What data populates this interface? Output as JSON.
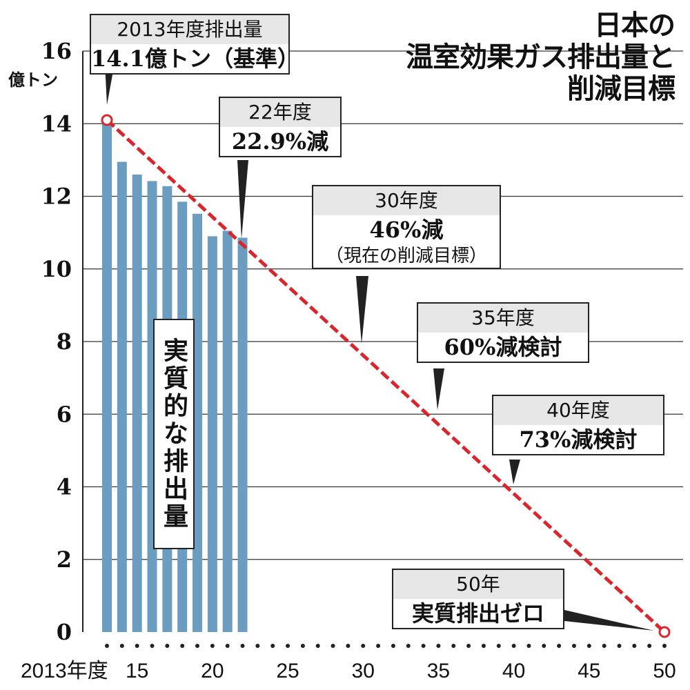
{
  "title_lines": [
    "日本の",
    "温室効果ガス排出量と",
    "削減目標"
  ],
  "y_unit": "億トン",
  "chart_data": {
    "type": "bar",
    "title": "日本の温室効果ガス排出量と削減目標",
    "ylabel": "億トン",
    "ylim": [
      0,
      16
    ],
    "yticks": [
      0,
      2,
      4,
      6,
      8,
      10,
      12,
      14,
      16
    ],
    "grid": true,
    "x_tick_labels": [
      {
        "year": 2013,
        "label": "2013年度"
      },
      {
        "year": 2015,
        "label": "15"
      },
      {
        "year": 2020,
        "label": "20"
      },
      {
        "year": 2025,
        "label": "25"
      },
      {
        "year": 2030,
        "label": "30"
      },
      {
        "year": 2035,
        "label": "35"
      },
      {
        "year": 2040,
        "label": "40"
      },
      {
        "year": 2045,
        "label": "45"
      },
      {
        "year": 2050,
        "label": "50"
      }
    ],
    "series": [
      {
        "name": "実質的な排出量",
        "type": "bar",
        "color": "#6a9dc0",
        "x": [
          2013,
          2014,
          2015,
          2016,
          2017,
          2018,
          2019,
          2020,
          2021,
          2022
        ],
        "values": [
          14.1,
          12.95,
          12.6,
          12.42,
          12.28,
          11.85,
          11.52,
          10.9,
          11.05,
          10.86
        ]
      },
      {
        "name": "削減目標",
        "type": "line",
        "style": "dashed",
        "color": "#d9262c",
        "x": [
          2013,
          2050
        ],
        "values": [
          14.1,
          0
        ]
      }
    ],
    "annotations": [
      {
        "id": "base",
        "header": "2013年度排出量",
        "body": "14.1億トン（基準）"
      },
      {
        "id": "y22",
        "header": "22年度",
        "body": "22.9%減"
      },
      {
        "id": "y30",
        "header": "30年度",
        "body": "46%減",
        "sub": "（現在の削減目標）"
      },
      {
        "id": "y35",
        "header": "35年度",
        "body": "60%減検討"
      },
      {
        "id": "y40",
        "header": "40年度",
        "body": "73%減検討"
      },
      {
        "id": "y50",
        "header": "50年",
        "body": "実質排出ゼロ"
      }
    ]
  }
}
